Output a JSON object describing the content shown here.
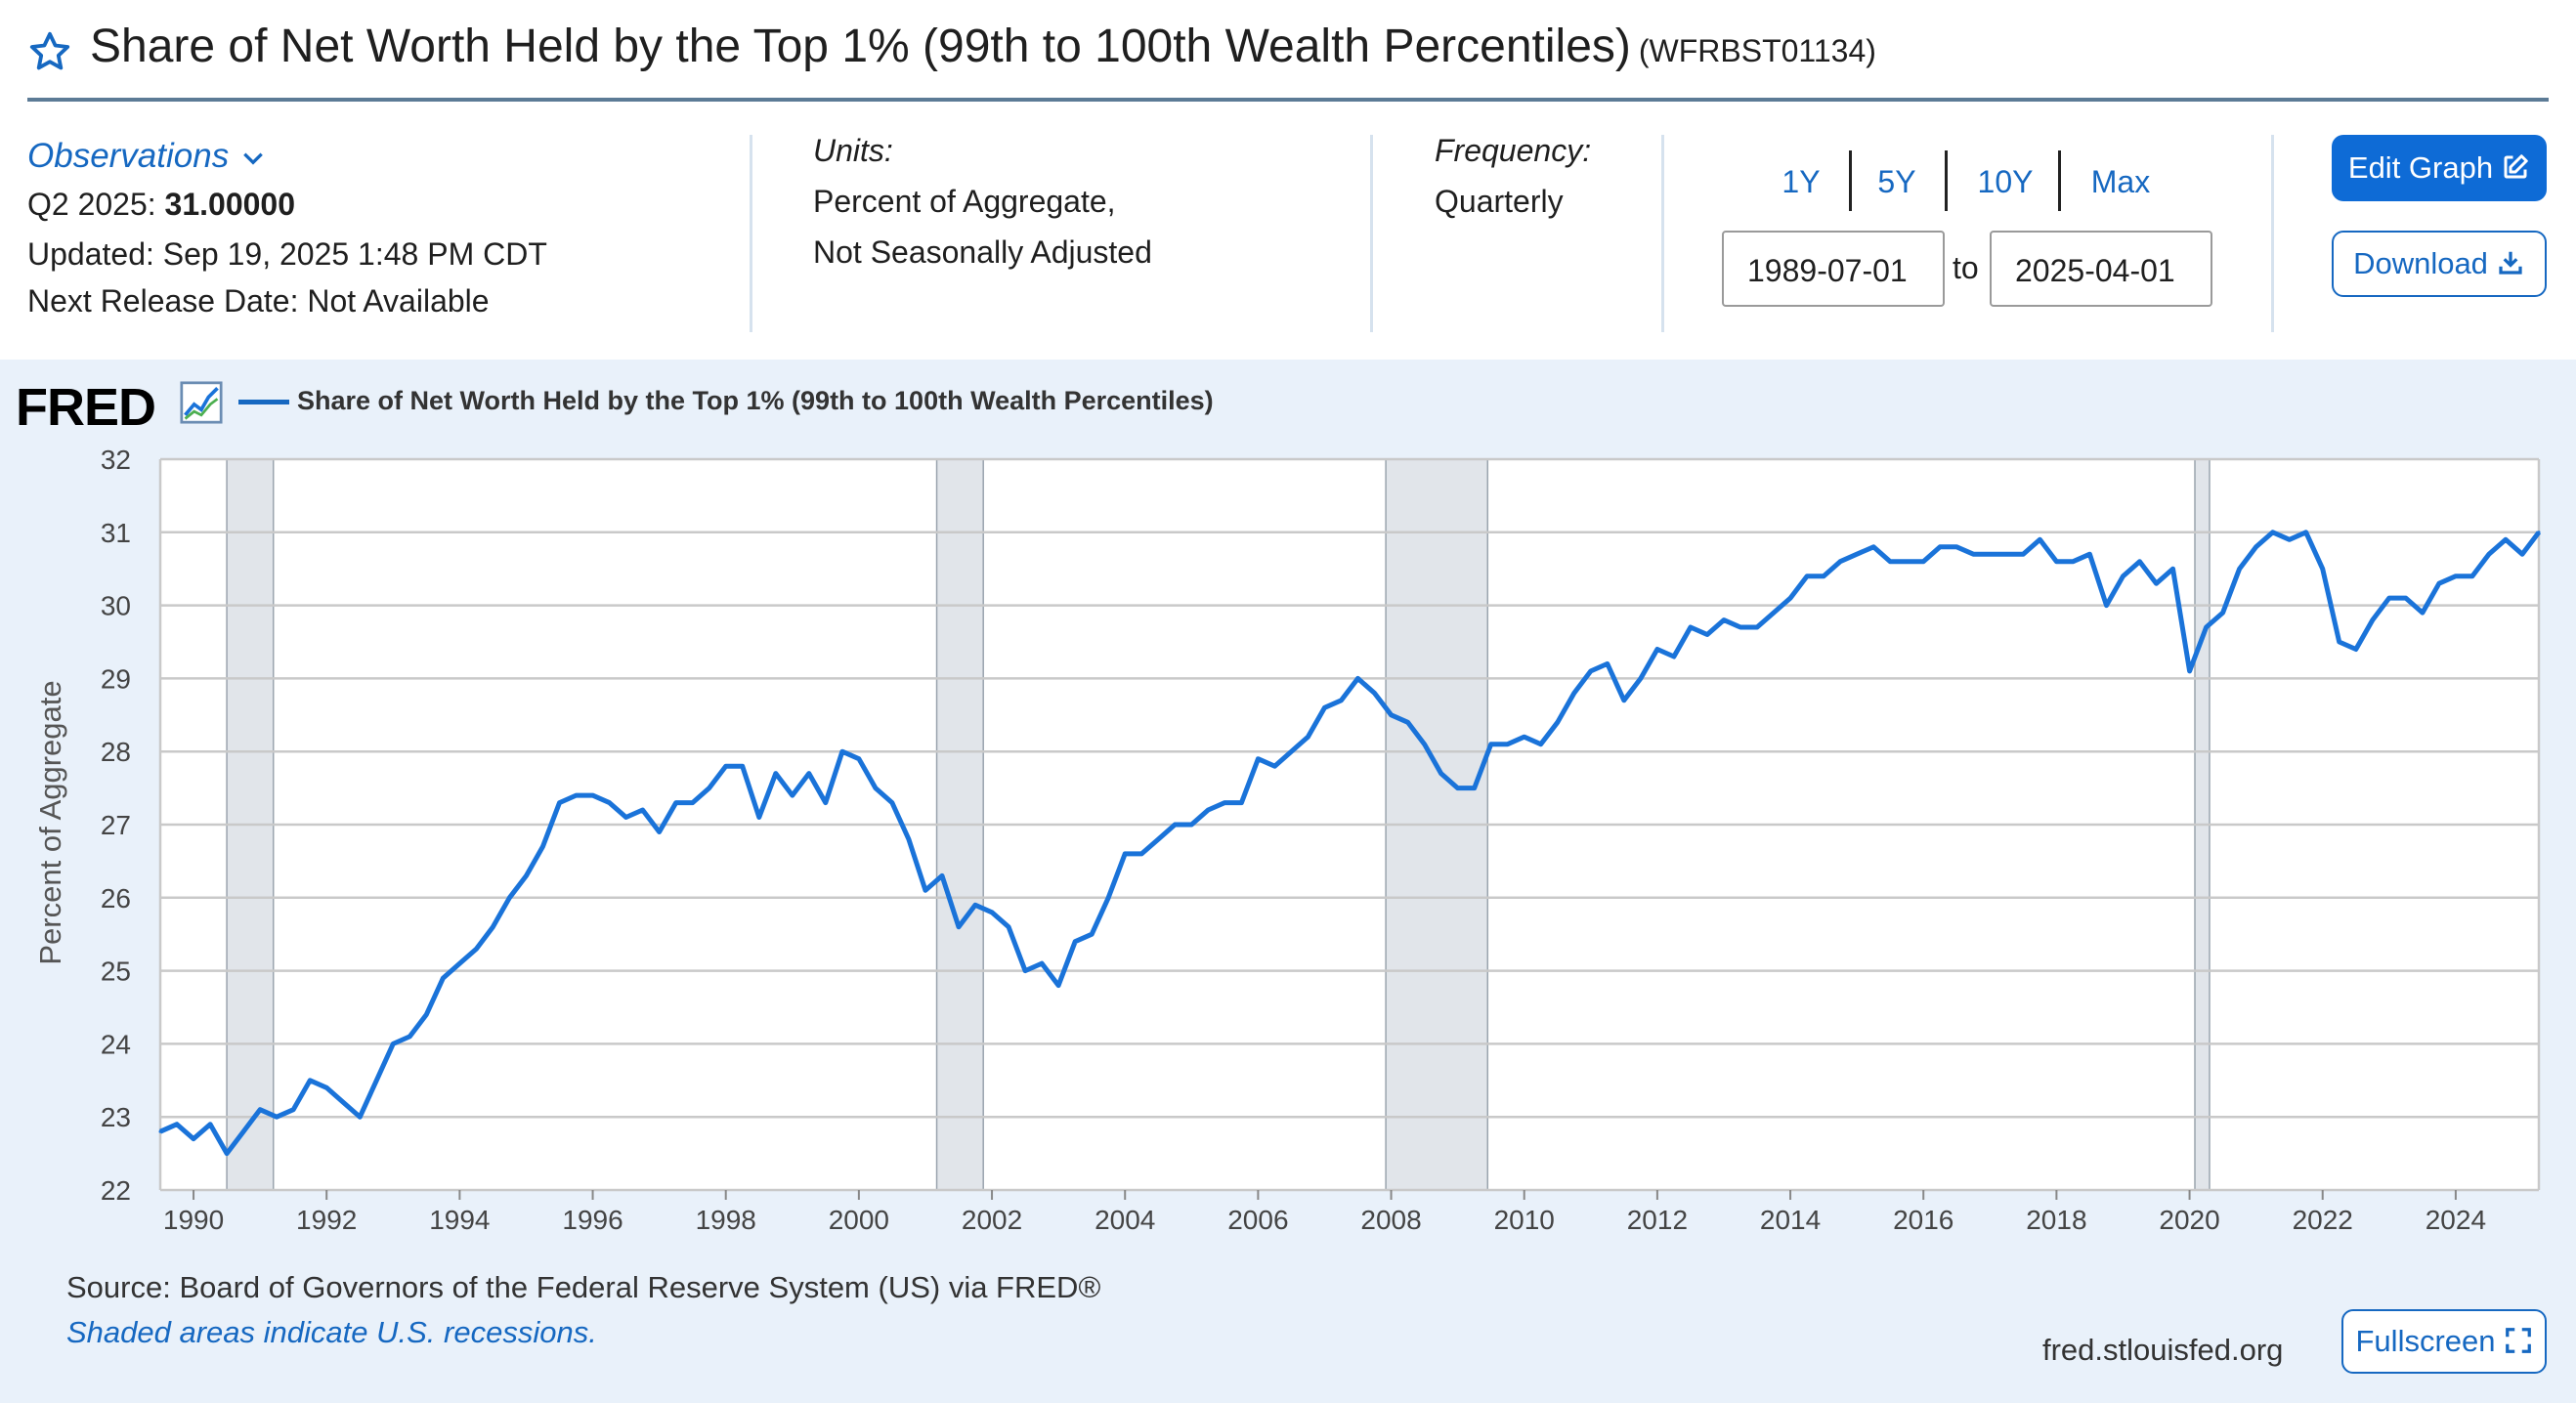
{
  "header": {
    "title": "Share of Net Worth Held by the Top 1% (99th to 100th Wealth Percentiles)",
    "series_id": "(WFRBST01134)"
  },
  "observations": {
    "link_label": "Observations",
    "latest_label": "Q2 2025:",
    "latest_value": "31.00000",
    "updated": "Updated: Sep 19, 2025 1:48 PM CDT",
    "next_release": "Next Release Date: Not Available"
  },
  "units": {
    "label": "Units:",
    "line1": "Percent of Aggregate,",
    "line2": "Not Seasonally Adjusted"
  },
  "frequency": {
    "label": "Frequency:",
    "value": "Quarterly"
  },
  "range": {
    "buttons": [
      "1Y",
      "5Y",
      "10Y",
      "Max"
    ],
    "start": "1989-07-01",
    "to_label": "to",
    "end": "2025-04-01"
  },
  "actions": {
    "edit": "Edit Graph",
    "download": "Download",
    "fullscreen": "Fullscreen"
  },
  "graph": {
    "logo": "FRED",
    "legend": "Share of Net Worth Held by the Top 1% (99th to 100th Wealth Percentiles)",
    "source": "Source: Board of Governors of the Federal Reserve System (US) via FRED®",
    "recession_note": "Shaded areas indicate U.S. recessions.",
    "site": "fred.stlouisfed.org"
  },
  "colors": {
    "accent": "#1668c1",
    "line": "#1a73d9",
    "panel": "#e9f1fa",
    "recession": "#e1e5ea"
  },
  "chart_data": {
    "type": "line",
    "title": "Share of Net Worth Held by the Top 1% (99th to 100th Wealth Percentiles)",
    "xlabel": "",
    "ylabel": "Percent of Aggregate",
    "xlim": [
      1989.5,
      2025.25
    ],
    "ylim": [
      22,
      32
    ],
    "yticks": [
      22,
      23,
      24,
      25,
      26,
      27,
      28,
      29,
      30,
      31,
      32
    ],
    "xticks": [
      1990,
      1992,
      1994,
      1996,
      1998,
      2000,
      2002,
      2004,
      2006,
      2008,
      2010,
      2012,
      2014,
      2016,
      2018,
      2020,
      2022,
      2024
    ],
    "recessions": [
      [
        1990.5,
        1991.2
      ],
      [
        2001.17,
        2001.87
      ],
      [
        2007.92,
        2009.45
      ],
      [
        2020.08,
        2020.3
      ]
    ],
    "series": [
      {
        "name": "Share of Net Worth Held by the Top 1% (99th to 100th Wealth Percentiles)",
        "start": 1989.5,
        "step": 0.25,
        "values": [
          22.8,
          22.9,
          22.7,
          22.9,
          22.5,
          22.8,
          23.1,
          23.0,
          23.1,
          23.5,
          23.4,
          23.2,
          23.0,
          23.5,
          24.0,
          24.1,
          24.4,
          24.9,
          25.1,
          25.3,
          25.6,
          26.0,
          26.3,
          26.7,
          27.3,
          27.4,
          27.4,
          27.3,
          27.1,
          27.2,
          26.9,
          27.3,
          27.3,
          27.5,
          27.8,
          27.8,
          27.1,
          27.7,
          27.4,
          27.7,
          27.3,
          28.0,
          27.9,
          27.5,
          27.3,
          26.8,
          26.1,
          26.3,
          25.6,
          25.9,
          25.8,
          25.6,
          25.0,
          25.1,
          24.8,
          25.4,
          25.5,
          26.0,
          26.6,
          26.6,
          26.8,
          27.0,
          27.0,
          27.2,
          27.3,
          27.3,
          27.9,
          27.8,
          28.0,
          28.2,
          28.6,
          28.7,
          29.0,
          28.8,
          28.5,
          28.4,
          28.1,
          27.7,
          27.5,
          27.5,
          28.1,
          28.1,
          28.2,
          28.1,
          28.4,
          28.8,
          29.1,
          29.2,
          28.7,
          29.0,
          29.4,
          29.3,
          29.7,
          29.6,
          29.8,
          29.7,
          29.7,
          29.9,
          30.1,
          30.4,
          30.4,
          30.6,
          30.7,
          30.8,
          30.6,
          30.6,
          30.6,
          30.8,
          30.8,
          30.7,
          30.7,
          30.7,
          30.7,
          30.9,
          30.6,
          30.6,
          30.7,
          30.0,
          30.4,
          30.6,
          30.3,
          30.5,
          29.1,
          29.7,
          29.9,
          30.5,
          30.8,
          31.0,
          30.9,
          31.0,
          30.5,
          29.5,
          29.4,
          29.8,
          30.1,
          30.1,
          29.9,
          30.3,
          30.4,
          30.4,
          30.7,
          30.9,
          30.7,
          31.0
        ]
      }
    ]
  }
}
